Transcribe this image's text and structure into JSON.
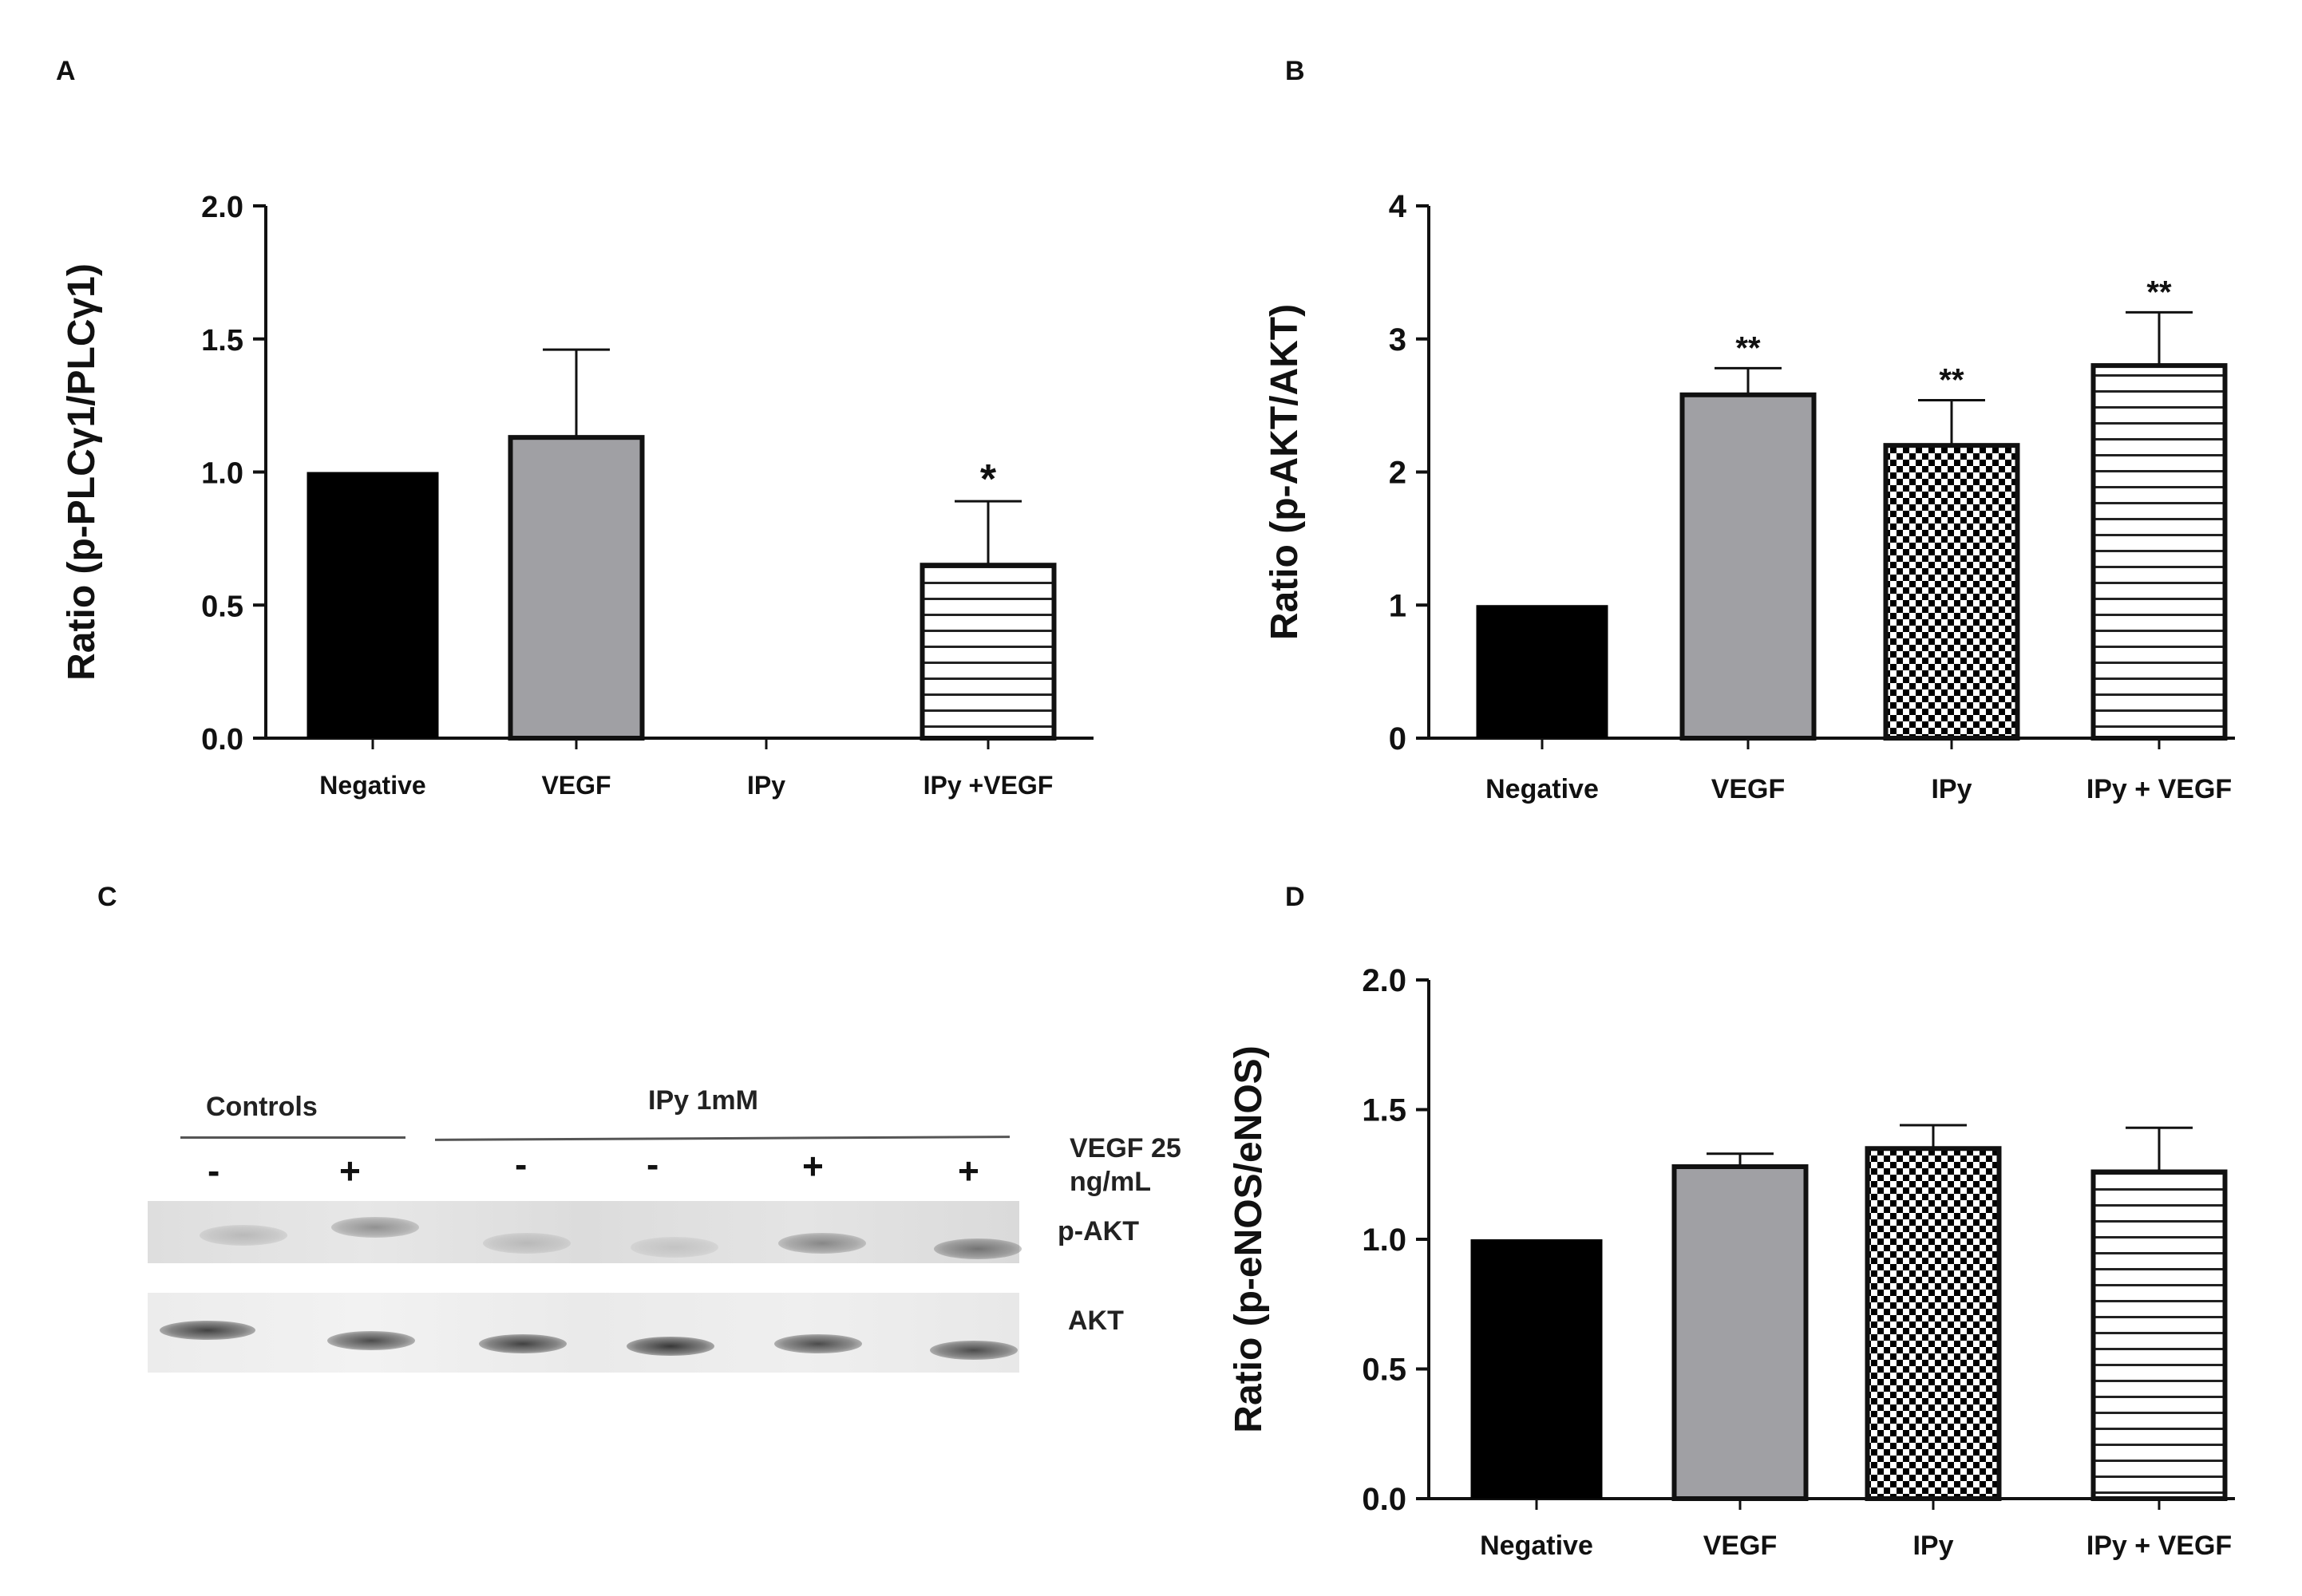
{
  "panels": {
    "a": "A",
    "b": "B",
    "c": "C",
    "d": "D"
  },
  "chart_data": [
    {
      "type": "bar",
      "panel": "A",
      "categories": [
        "Negative",
        "VEGF",
        "IPy",
        "IPy +VEGF"
      ],
      "values": [
        1.0,
        1.13,
        0,
        0.65
      ],
      "errors": [
        0,
        0.33,
        0,
        0.24
      ],
      "significance": [
        "",
        "",
        "",
        "*"
      ],
      "fills": [
        "solid",
        "gray",
        "none",
        "hstripe"
      ],
      "ylabel": "Ratio (p-PLCγ1/PLCγ1)",
      "ylim": [
        0,
        2.0
      ],
      "yticks": [
        "0.0",
        "0.5",
        "1.0",
        "1.5",
        "2.0"
      ]
    },
    {
      "type": "bar",
      "panel": "B",
      "categories": [
        "Negative",
        "VEGF",
        "IPy",
        "IPy + VEGF"
      ],
      "values": [
        1.0,
        2.58,
        2.2,
        2.8
      ],
      "errors": [
        0,
        0.2,
        0.34,
        0.4
      ],
      "significance": [
        "",
        "**",
        "**",
        "**"
      ],
      "fills": [
        "solid",
        "gray",
        "checker",
        "hstripe"
      ],
      "ylabel": "Ratio (p-AKT/AKT)",
      "ylim": [
        0,
        4
      ],
      "yticks": [
        "0",
        "1",
        "2",
        "3",
        "4"
      ]
    },
    {
      "type": "bar",
      "panel": "D",
      "categories": [
        "Negative",
        "VEGF",
        "IPy",
        "IPy + VEGF"
      ],
      "values": [
        1.0,
        1.28,
        1.35,
        1.26
      ],
      "errors": [
        0,
        0.05,
        0.09,
        0.17
      ],
      "significance": [
        "",
        "",
        "",
        ""
      ],
      "fills": [
        "solid",
        "gray",
        "checker",
        "hstripe"
      ],
      "ylabel": "Ratio (p-eNOS/eNOS)",
      "ylim": [
        0,
        2.0
      ],
      "yticks": [
        "0.0",
        "0.5",
        "1.0",
        "1.5",
        "2.0"
      ]
    }
  ],
  "blot": {
    "controls_label": "Controls",
    "ipy_label": "IPy 1mM",
    "vegf_label_line1": "VEGF 25",
    "vegf_label_line2": "ng/mL",
    "signs": [
      "-",
      "+",
      "-",
      "-",
      "+",
      "+"
    ],
    "row_labels": [
      "p-AKT",
      "AKT"
    ],
    "pakt_intensity": [
      0.25,
      0.45,
      0.25,
      0.2,
      0.5,
      0.6
    ],
    "akt_intensity": [
      0.85,
      0.8,
      0.85,
      0.9,
      0.8,
      0.8
    ]
  },
  "colors": {
    "bar_solid": "#000000",
    "bar_gray": "#a0a0a4",
    "axis": "#111111"
  }
}
